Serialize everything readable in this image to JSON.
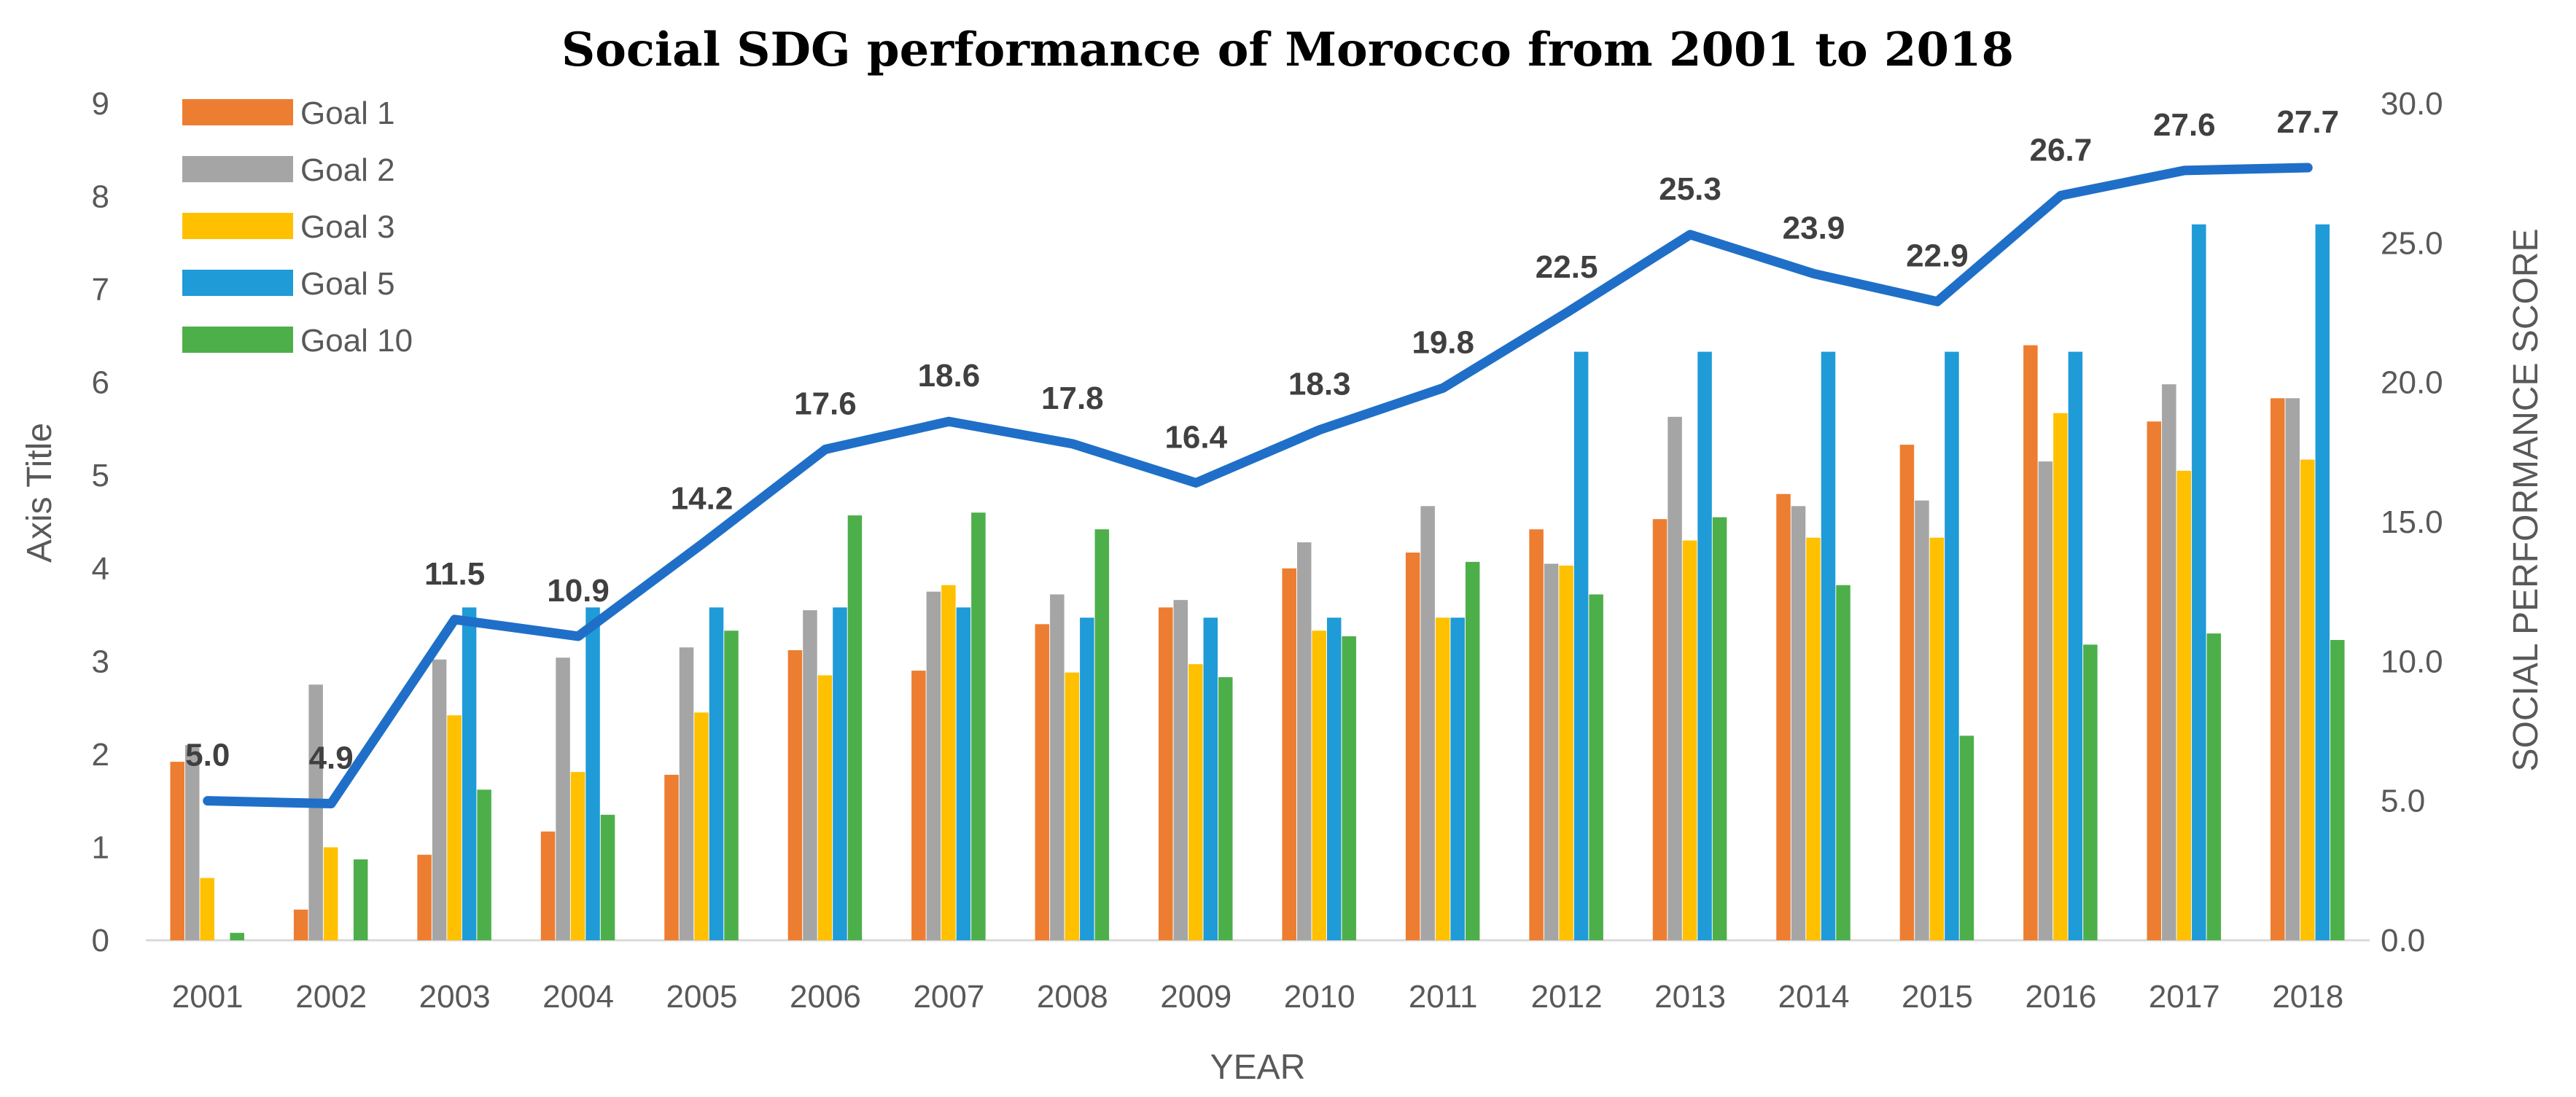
{
  "chart_data": {
    "type": "bar",
    "title": "Social SDG performance of Morocco from 2001 to 2018",
    "xlabel": "YEAR",
    "ylabel": "Axis Title",
    "y2label": "SOCIAL PERFORMANCE SCORE",
    "ylim": [
      0,
      9
    ],
    "y2lim": [
      0,
      30
    ],
    "yticks": [
      "0",
      "1",
      "2",
      "3",
      "4",
      "5",
      "6",
      "7",
      "8",
      "9"
    ],
    "y2ticks": [
      "0.0",
      "5.0",
      "10.0",
      "15.0",
      "20.0",
      "25.0",
      "30.0"
    ],
    "grid": false,
    "legend_position": "top-left",
    "categories": [
      "2001",
      "2002",
      "2003",
      "2004",
      "2005",
      "2006",
      "2007",
      "2008",
      "2009",
      "2010",
      "2011",
      "2012",
      "2013",
      "2014",
      "2015",
      "2016",
      "2017",
      "2018"
    ],
    "series": [
      {
        "name": "Goal 1",
        "type": "bar",
        "axis": "left",
        "color": "#ED7D31",
        "values": [
          1.92,
          0.33,
          0.92,
          1.17,
          1.78,
          3.12,
          2.9,
          3.4,
          3.58,
          4.0,
          4.17,
          4.42,
          4.53,
          4.8,
          5.33,
          6.4,
          5.58,
          5.83
        ]
      },
      {
        "name": "Goal 2",
        "type": "bar",
        "axis": "left",
        "color": "#A5A5A5",
        "values": [
          2.1,
          2.75,
          3.02,
          3.04,
          3.15,
          3.55,
          3.75,
          3.72,
          3.66,
          4.28,
          4.67,
          4.05,
          5.63,
          4.67,
          4.73,
          5.15,
          5.98,
          5.83
        ]
      },
      {
        "name": "Goal 3",
        "type": "bar",
        "axis": "left",
        "color": "#FFC000",
        "values": [
          0.67,
          1.0,
          2.42,
          1.81,
          2.45,
          2.85,
          3.82,
          2.88,
          2.97,
          3.33,
          3.47,
          4.03,
          4.3,
          4.33,
          4.33,
          5.67,
          5.05,
          5.17
        ]
      },
      {
        "name": "Goal 5",
        "type": "bar",
        "axis": "left",
        "color": "#1F9BD7",
        "values": [
          0.0,
          0.0,
          3.58,
          3.58,
          3.58,
          3.58,
          3.58,
          3.47,
          3.47,
          3.47,
          3.47,
          6.33,
          6.33,
          6.33,
          6.33,
          6.33,
          7.7,
          7.7
        ]
      },
      {
        "name": "Goal 10",
        "type": "bar",
        "axis": "left",
        "color": "#4DAF4A",
        "values": [
          0.08,
          0.87,
          1.62,
          1.35,
          3.33,
          4.57,
          4.6,
          4.42,
          2.83,
          3.27,
          4.07,
          3.72,
          4.55,
          3.82,
          2.2,
          3.18,
          3.3,
          3.23
        ]
      },
      {
        "name": "",
        "type": "line",
        "axis": "right",
        "color": "#1F6FC8",
        "values": [
          5.0,
          4.9,
          11.5,
          10.9,
          14.2,
          17.6,
          18.6,
          17.8,
          16.4,
          18.3,
          19.8,
          22.5,
          25.3,
          23.9,
          22.9,
          26.7,
          27.6,
          27.7
        ],
        "labels": [
          "5.0",
          "4.9",
          "11.5",
          "10.9",
          "14.2",
          "17.6",
          "18.6",
          "17.8",
          "16.4",
          "18.3",
          "19.8",
          "22.5",
          "25.3",
          "23.9",
          "22.9",
          "26.7",
          "27.6",
          "27.7"
        ]
      }
    ]
  }
}
